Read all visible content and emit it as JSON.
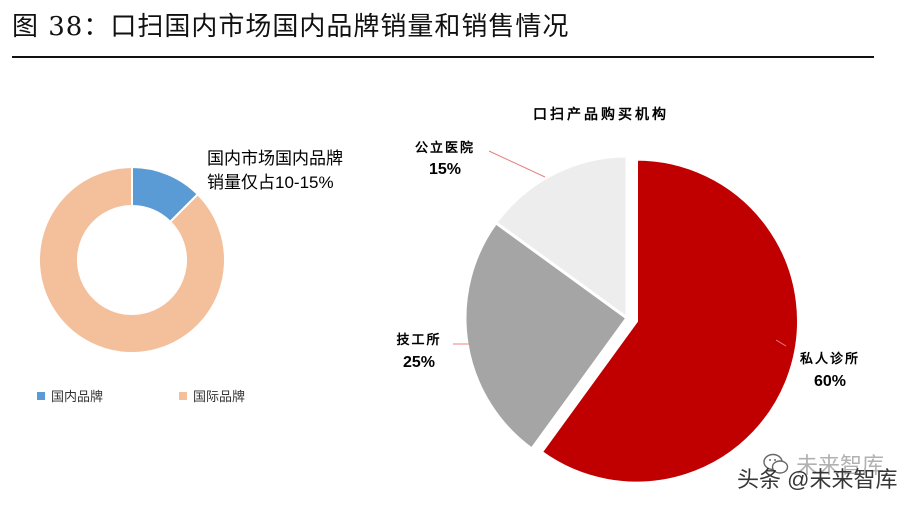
{
  "page": {
    "title": "图 38：口扫国内市场国内品牌销量和销售情况"
  },
  "donut": {
    "annotation_line1": "国内市场国内品牌",
    "annotation_line2": "销量仅占10-15%",
    "legend": [
      {
        "label": "国内品牌",
        "color": "#5B9BD5"
      },
      {
        "label": "国际品牌",
        "color": "#F4BF9B"
      }
    ]
  },
  "pie": {
    "title": "口扫产品购买机构",
    "slices": [
      {
        "label": "私人诊所",
        "value_text": "60%",
        "color": "#C00000"
      },
      {
        "label": "技工所",
        "value_text": "25%",
        "color": "#A5A5A5"
      },
      {
        "label": "公立医院",
        "value_text": "15%",
        "color": "#EDEDED"
      }
    ]
  },
  "watermark": {
    "text": "头条 @未来智库",
    "ghost_text": "未来智库",
    "icon": "wechat-icon"
  },
  "chart_data": [
    {
      "type": "pie",
      "subtype": "donut",
      "title": "",
      "series": [
        {
          "values": [
            12.5,
            87.5
          ]
        }
      ],
      "categories": [
        "国内品牌",
        "国际品牌"
      ],
      "colors": [
        "#5B9BD5",
        "#F4BF9B"
      ],
      "legend": "bottom",
      "annotation": "国内市场国内品牌销量仅占10-15%"
    },
    {
      "type": "pie",
      "title": "口扫产品购买机构",
      "categories": [
        "私人诊所",
        "技工所",
        "公立医院"
      ],
      "values": [
        60,
        25,
        15
      ],
      "colors": [
        "#C00000",
        "#A5A5A5",
        "#EDEDED"
      ],
      "exploded": "私人诊所",
      "legend": "none"
    }
  ]
}
